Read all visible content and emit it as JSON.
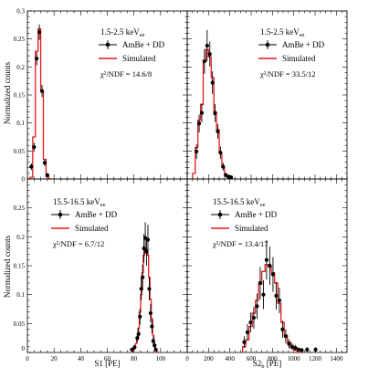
{
  "ylabel": "Normalized counts",
  "legend": {
    "data_label": "AmBe + DD",
    "sim_label": "Simulated"
  },
  "colors": {
    "data": "#000000",
    "sim": "#e41a1c",
    "axis": "#000000"
  },
  "chart_data": [
    {
      "panel": "top-left",
      "type": "histogram",
      "energy_label": "1.5-2.5 keV",
      "energy_sub": "ee",
      "chi2_label": "χ²/NDF = 14.6/8",
      "xlim": [
        0,
        120
      ],
      "ylim": [
        0,
        0.3
      ],
      "xticks": [],
      "yticks": [
        "0",
        "0.05",
        "0.1",
        "0.15",
        "0.2",
        "0.25",
        "0.3"
      ],
      "xlabel": "",
      "bin_width": 2,
      "data_points": [
        {
          "x": 3,
          "y": 0.022,
          "err": 0.006
        },
        {
          "x": 5,
          "y": 0.057,
          "err": 0.008
        },
        {
          "x": 7,
          "y": 0.215,
          "err": 0.012
        },
        {
          "x": 9,
          "y": 0.262,
          "err": 0.014
        },
        {
          "x": 11,
          "y": 0.157,
          "err": 0.011
        },
        {
          "x": 13,
          "y": 0.029,
          "err": 0.006
        },
        {
          "x": 15,
          "y": 0.007,
          "err": 0.003
        }
      ],
      "sim_edges": [
        0,
        2,
        4,
        6,
        8,
        10,
        12,
        14,
        16,
        18
      ],
      "sim_values": [
        0,
        0.003,
        0.075,
        0.228,
        0.268,
        0.158,
        0.035,
        0.004,
        0
      ]
    },
    {
      "panel": "top-right",
      "type": "histogram",
      "energy_label": "1.5-2.5 keV",
      "energy_sub": "ee",
      "chi2_label": "χ²/NDF = 33.5/12",
      "xlim": [
        0,
        1500
      ],
      "ylim": [
        0,
        0.3
      ],
      "xticks": [],
      "yticks": [],
      "xlabel": "",
      "bin_width": 25,
      "data_points": [
        {
          "x": 87,
          "y": 0.049,
          "err": 0.013
        },
        {
          "x": 112,
          "y": 0.099,
          "err": 0.016
        },
        {
          "x": 137,
          "y": 0.118,
          "err": 0.017
        },
        {
          "x": 162,
          "y": 0.21,
          "err": 0.022
        },
        {
          "x": 187,
          "y": 0.238,
          "err": 0.028
        },
        {
          "x": 212,
          "y": 0.223,
          "err": 0.022
        },
        {
          "x": 237,
          "y": 0.172,
          "err": 0.02
        },
        {
          "x": 262,
          "y": 0.118,
          "err": 0.016
        },
        {
          "x": 287,
          "y": 0.085,
          "err": 0.013
        },
        {
          "x": 312,
          "y": 0.047,
          "err": 0.011
        },
        {
          "x": 337,
          "y": 0.022,
          "err": 0.007
        },
        {
          "x": 362,
          "y": 0.007,
          "err": 0.004
        },
        {
          "x": 387,
          "y": 0.004,
          "err": 0.003
        },
        {
          "x": 412,
          "y": 0.003,
          "err": 0.002
        }
      ],
      "sim_edges": [
        50,
        75,
        100,
        125,
        150,
        175,
        200,
        225,
        250,
        275,
        300,
        325,
        350,
        375,
        400,
        425
      ],
      "sim_values": [
        0.01,
        0.056,
        0.105,
        0.133,
        0.212,
        0.231,
        0.218,
        0.181,
        0.115,
        0.088,
        0.047,
        0.02,
        0.008,
        0.003,
        0
      ]
    },
    {
      "panel": "bottom-left",
      "type": "histogram",
      "energy_label": "15.5-16.5 keV",
      "energy_sub": "ee",
      "chi2_label": "χ²/NDF = 6.7/12",
      "xlim": [
        0,
        120
      ],
      "ylim": [
        0,
        0.3
      ],
      "xticks": [
        "0",
        "20",
        "40",
        "60",
        "80",
        "100"
      ],
      "yticks": [
        "0",
        "0.05",
        "0.1",
        "0.15",
        "0.2",
        "0.25"
      ],
      "xlabel": "S1 [PE]",
      "bin_width": 1,
      "data_points": [
        {
          "x": 78.5,
          "y": 0.005,
          "err": 0.003
        },
        {
          "x": 80.5,
          "y": 0.009,
          "err": 0.004
        },
        {
          "x": 82.5,
          "y": 0.025,
          "err": 0.008
        },
        {
          "x": 83.5,
          "y": 0.032,
          "err": 0.01
        },
        {
          "x": 84.5,
          "y": 0.062,
          "err": 0.014
        },
        {
          "x": 85.5,
          "y": 0.11,
          "err": 0.02
        },
        {
          "x": 86.5,
          "y": 0.13,
          "err": 0.022
        },
        {
          "x": 87.5,
          "y": 0.18,
          "err": 0.025
        },
        {
          "x": 88.5,
          "y": 0.198,
          "err": 0.027
        },
        {
          "x": 89.5,
          "y": 0.175,
          "err": 0.025
        },
        {
          "x": 90.5,
          "y": 0.195,
          "err": 0.026
        },
        {
          "x": 91.5,
          "y": 0.11,
          "err": 0.02
        },
        {
          "x": 92.5,
          "y": 0.068,
          "err": 0.016
        },
        {
          "x": 93.5,
          "y": 0.045,
          "err": 0.012
        },
        {
          "x": 94.5,
          "y": 0.02,
          "err": 0.008
        },
        {
          "x": 95.5,
          "y": 0.012,
          "err": 0.006
        },
        {
          "x": 96.5,
          "y": 0.005,
          "err": 0.003
        }
      ],
      "sim_edges": [
        79,
        80,
        81,
        82,
        83,
        84,
        85,
        86,
        87,
        88,
        89,
        90,
        91,
        92,
        93,
        94,
        95,
        96,
        97,
        98
      ],
      "sim_values": [
        0.003,
        0.008,
        0.015,
        0.025,
        0.042,
        0.07,
        0.1,
        0.138,
        0.168,
        0.18,
        0.178,
        0.168,
        0.13,
        0.092,
        0.058,
        0.03,
        0.014,
        0.005,
        0.001
      ]
    },
    {
      "panel": "bottom-right",
      "type": "histogram",
      "energy_label": "15.5-16.5 keV",
      "energy_sub": "ee",
      "chi2_label": "χ²/NDF = 13.4/17",
      "xlim": [
        0,
        1500
      ],
      "ylim": [
        0,
        0.3
      ],
      "xticks": [
        "0",
        "200",
        "400",
        "600",
        "800",
        "1000",
        "1200",
        "1400"
      ],
      "yticks": [],
      "xlabel": "S2",
      "xlabel_sub": "b",
      "xlabel_unit": " [PE]",
      "bin_width": 30,
      "data_points": [
        {
          "x": 535,
          "y": 0.018,
          "err": 0.01
        },
        {
          "x": 565,
          "y": 0.035,
          "err": 0.014
        },
        {
          "x": 595,
          "y": 0.052,
          "err": 0.017
        },
        {
          "x": 625,
          "y": 0.06,
          "err": 0.019
        },
        {
          "x": 655,
          "y": 0.08,
          "err": 0.022
        },
        {
          "x": 685,
          "y": 0.12,
          "err": 0.028
        },
        {
          "x": 715,
          "y": 0.1,
          "err": 0.025
        },
        {
          "x": 745,
          "y": 0.16,
          "err": 0.034
        },
        {
          "x": 775,
          "y": 0.15,
          "err": 0.033
        },
        {
          "x": 805,
          "y": 0.135,
          "err": 0.03
        },
        {
          "x": 835,
          "y": 0.098,
          "err": 0.024
        },
        {
          "x": 865,
          "y": 0.09,
          "err": 0.022
        },
        {
          "x": 895,
          "y": 0.04,
          "err": 0.015
        },
        {
          "x": 925,
          "y": 0.028,
          "err": 0.012
        },
        {
          "x": 955,
          "y": 0.015,
          "err": 0.008
        },
        {
          "x": 985,
          "y": 0.01,
          "err": 0.006
        },
        {
          "x": 1015,
          "y": 0.008,
          "err": 0.005
        },
        {
          "x": 1045,
          "y": 0.005,
          "err": 0.004
        },
        {
          "x": 1075,
          "y": 0.004,
          "err": 0.004
        },
        {
          "x": 1125,
          "y": 0.005,
          "err": 0.004
        },
        {
          "x": 1205,
          "y": 0.005,
          "err": 0.004
        }
      ],
      "sim_edges": [
        520,
        550,
        580,
        610,
        640,
        670,
        700,
        730,
        760,
        790,
        820,
        850,
        880,
        910,
        940,
        970,
        1000,
        1030,
        1060
      ],
      "sim_values": [
        0.01,
        0.022,
        0.045,
        0.068,
        0.09,
        0.118,
        0.14,
        0.152,
        0.148,
        0.138,
        0.12,
        0.085,
        0.052,
        0.03,
        0.018,
        0.008,
        0.004,
        0
      ]
    }
  ]
}
